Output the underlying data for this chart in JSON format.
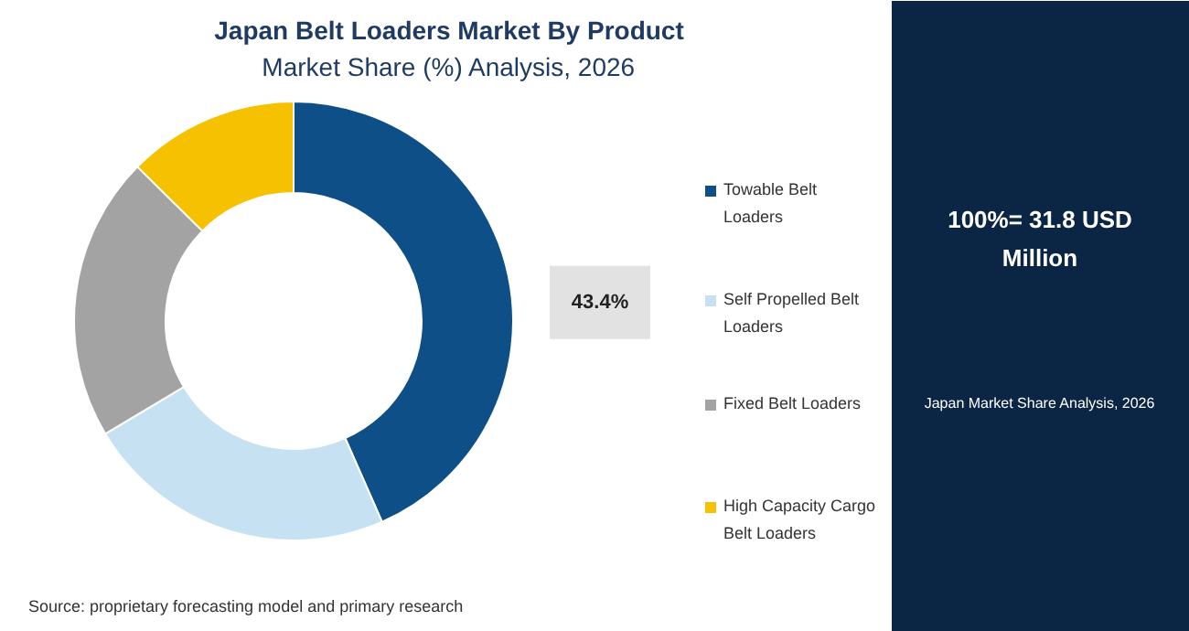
{
  "chart_data": {
    "type": "donut",
    "title": "Japan Belt Loaders Market By Product",
    "subtitle": "Market Share (%) Analysis, 2026",
    "categories": [
      "Towable Belt Loaders",
      "Self Propelled Belt Loaders",
      "Fixed Belt Loaders",
      "High Capacity Cargo Belt Loaders"
    ],
    "values": [
      43.4,
      23,
      21,
      12.6
    ],
    "colors": [
      "#0d4f86",
      "#c6e2f2",
      "#a3a3a3",
      "#f6c100"
    ],
    "value_labels": [
      "43.4%",
      null,
      null,
      null
    ],
    "legend": "right",
    "annotations": [
      "100%= 31.8 USD Million",
      "Japan Market Share Analysis, 2026",
      "Source: proprietary forecasting model and primary research"
    ]
  }
}
